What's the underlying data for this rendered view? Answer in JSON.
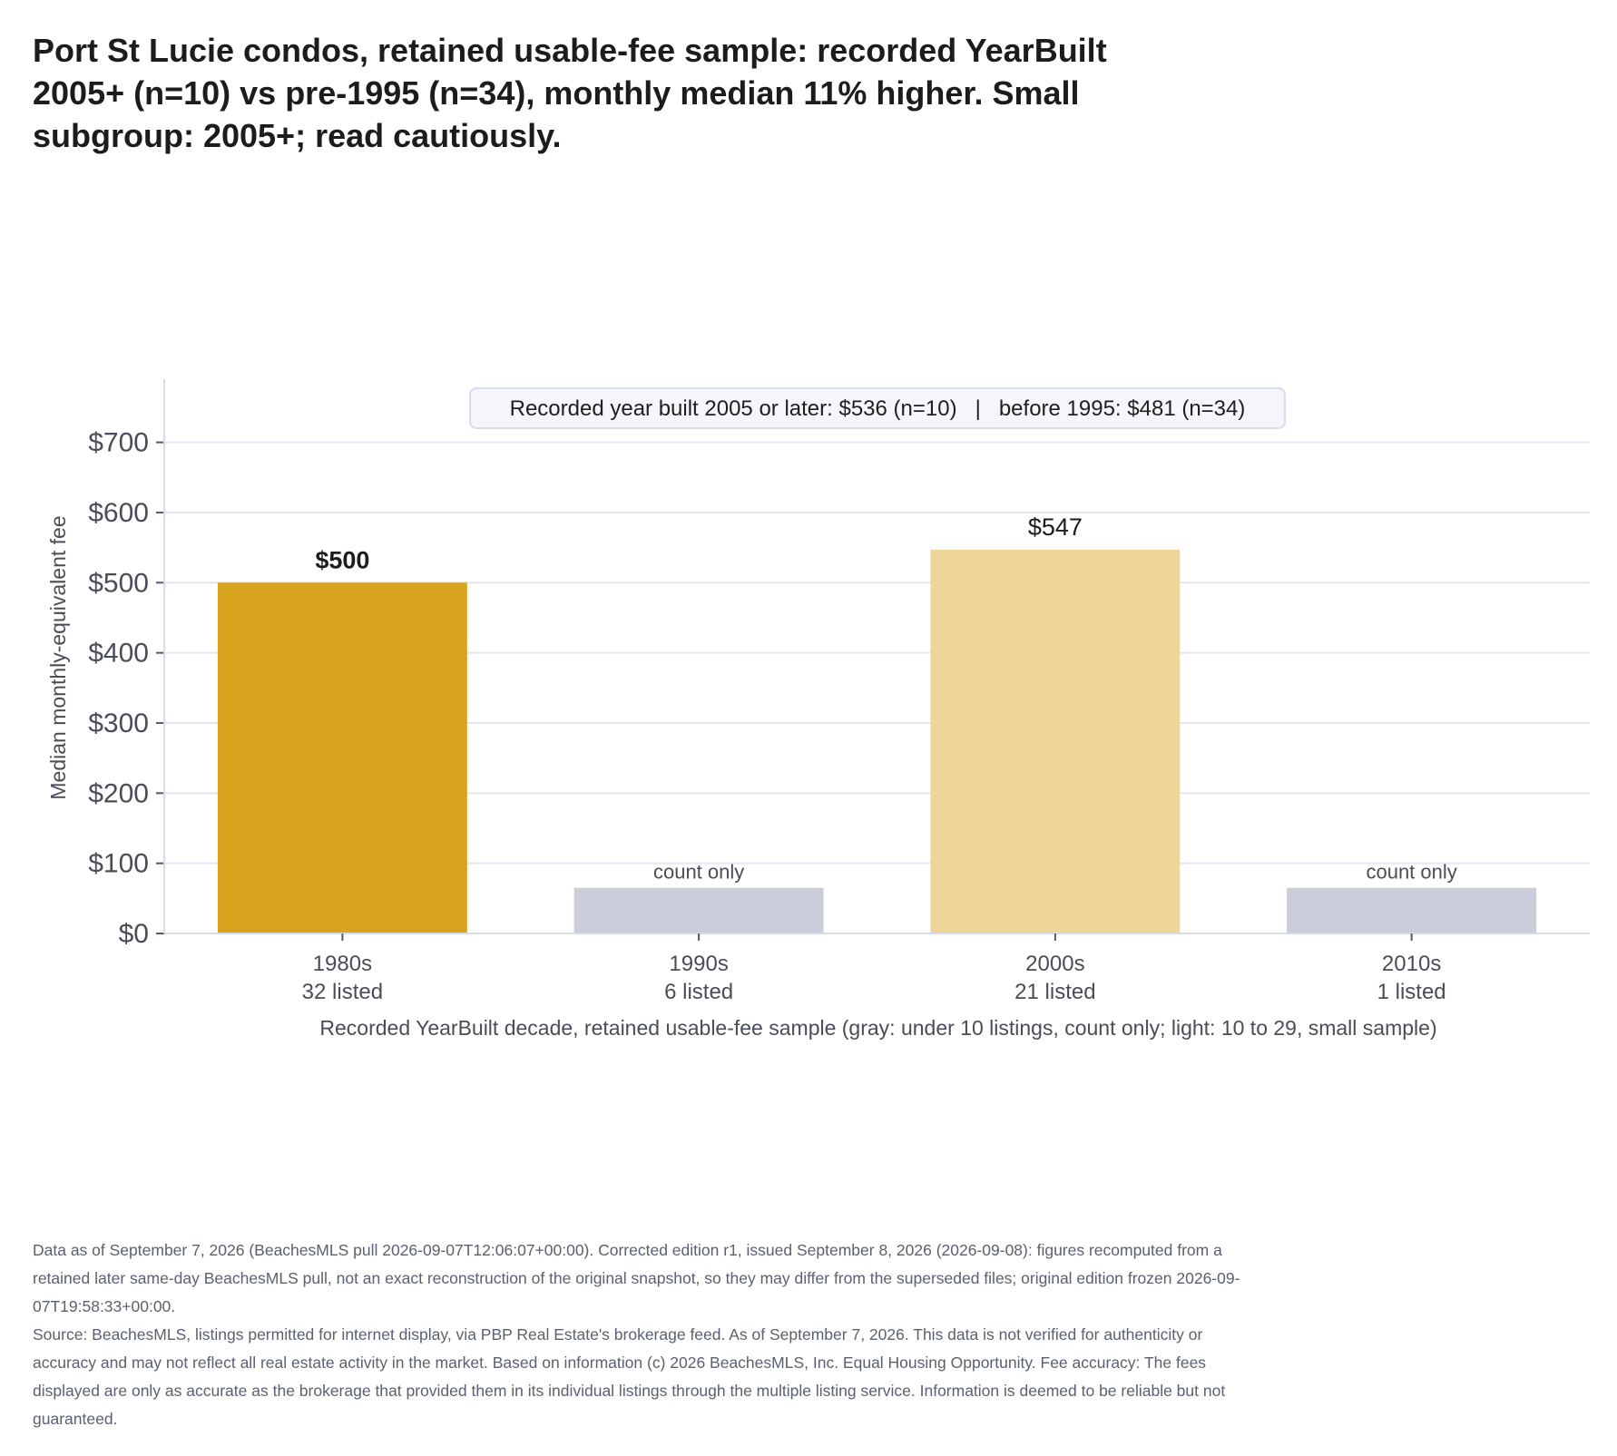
{
  "title": "Port St Lucie condos, retained usable-fee sample: recorded YearBuilt 2005+ (n=10) vs pre-1995 (n=34), monthly median 11% higher. Small subgroup: 2005+; read cautiously.",
  "footer": {
    "note": "Data as of September 7, 2026 (BeachesMLS pull 2026-09-07T12:06:07+00:00). Corrected edition r1, issued September 8, 2026 (2026-09-08): figures recomputed from a retained later same-day BeachesMLS pull, not an exact reconstruction of the original snapshot, so they may differ from the superseded files; original edition frozen 2026-09-07T19:58:33+00:00.",
    "source": "Source: BeachesMLS, listings permitted for internet display, via PBP Real Estate's brokerage feed. As of September 7, 2026. This data is not verified for authenticity or accuracy and may not reflect all real estate activity in the market. Based on information (c) 2026 BeachesMLS, Inc. Equal Housing Opportunity. Fee accuracy: The fees displayed are only as accurate as the brokerage that provided them in its individual listings through the multiple listing service. Information is deemed to be reliable but not guaranteed."
  },
  "chart_data": {
    "type": "bar",
    "annotation": "Recorded year built 2005 or later: $536 (n=10)   |   before 1995: $481 (n=34)",
    "xlabel": "Recorded YearBuilt decade, retained usable-fee sample (gray: under 10 listings, count only; light: 10 to 29, small sample)",
    "ylabel": "Median monthly-equivalent fee",
    "ylim": [
      0,
      790
    ],
    "yticks": [
      0,
      100,
      200,
      300,
      400,
      500,
      600,
      700
    ],
    "ytick_labels": [
      "$0",
      "$100",
      "$200",
      "$300",
      "$400",
      "$500",
      "$600",
      "$700"
    ],
    "grid": true,
    "categories": [
      "1980s",
      "1990s",
      "2000s",
      "2010s"
    ],
    "counts": [
      "32 listed",
      "6 listed",
      "21 listed",
      "1 listed"
    ],
    "values": [
      500,
      null,
      547,
      null
    ],
    "placeholder_value": 65,
    "labels": [
      "$500",
      "count only",
      "$547",
      "count only"
    ],
    "colors": [
      "#d8a31f",
      "#cacdda",
      "#eed698",
      "#cacdda"
    ],
    "axis_color": "#d9dce8",
    "grid_color": "#e3e5f0"
  }
}
